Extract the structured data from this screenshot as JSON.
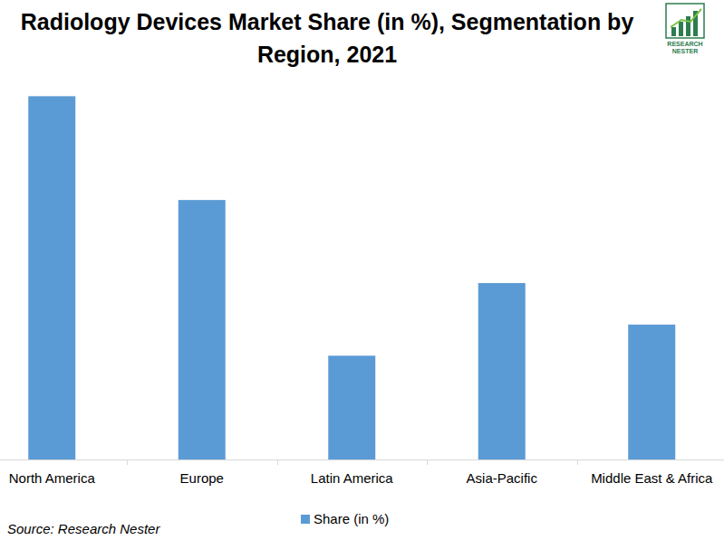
{
  "chart_data": {
    "type": "bar",
    "title": "Radiology Devices Market Share (in %), Segmentation by Region, 2021",
    "categories": [
      "North America",
      "Europe",
      "Latin America",
      "Asia-Pacific",
      "Middle East & Africa"
    ],
    "series": [
      {
        "name": "Share (in %)",
        "color": "#5b9bd5",
        "values": [
          35,
          25,
          10,
          17,
          13
        ]
      }
    ],
    "ylim": [
      0,
      40
    ],
    "tick_labels": "x",
    "legend": "bottom",
    "grid": false,
    "source": "Source: Research Nester",
    "logo_lines": [
      "RESEARCH",
      "NESTER"
    ]
  }
}
